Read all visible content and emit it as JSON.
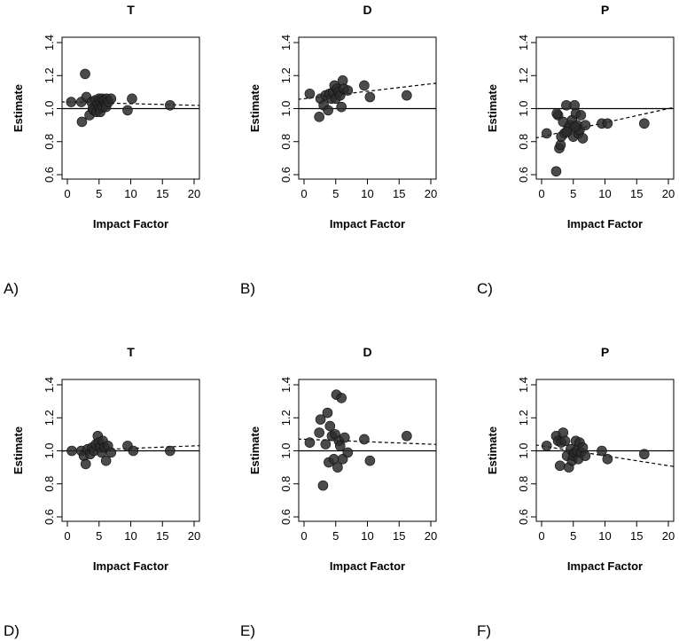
{
  "colors": {
    "point": "#2b2b2b",
    "line": "#000000"
  },
  "chart_data": [
    {
      "panel": "A)",
      "type": "scatter",
      "title": "T",
      "xlabel": "Impact Factor",
      "ylabel": "Estimate",
      "xlim": [
        0,
        20
      ],
      "ylim": [
        0.6,
        1.4
      ],
      "xticks": [
        "0",
        "5",
        "10",
        "15",
        "20"
      ],
      "yticks": [
        "0.6",
        "0.8",
        "1.0",
        "1.2",
        "1.4"
      ],
      "reference_line": 1.0,
      "trend_line": [
        [
          0,
          1.04
        ],
        [
          20,
          1.02
        ]
      ],
      "x": [
        0.6,
        2.2,
        2.3,
        2.8,
        3.0,
        3.5,
        3.8,
        4.0,
        4.2,
        4.4,
        4.6,
        4.8,
        5.0,
        5.1,
        5.2,
        5.3,
        5.5,
        5.6,
        5.8,
        6.0,
        6.1,
        6.2,
        6.5,
        6.9,
        9.5,
        10.2,
        16.2
      ],
      "y": [
        1.04,
        1.04,
        0.92,
        1.21,
        1.07,
        0.96,
        1.04,
        1.0,
        0.99,
        1.05,
        0.98,
        1.03,
        1.06,
        1.0,
        0.98,
        1.04,
        1.06,
        1.01,
        1.05,
        1.03,
        1.01,
        1.06,
        1.04,
        1.06,
        0.99,
        1.06,
        1.02
      ]
    },
    {
      "panel": "B)",
      "type": "scatter",
      "title": "D",
      "xlabel": "Impact Factor",
      "ylabel": "Estimate",
      "xlim": [
        0,
        20
      ],
      "ylim": [
        0.6,
        1.4
      ],
      "xticks": [
        "0",
        "5",
        "10",
        "15",
        "20"
      ],
      "yticks": [
        "0.6",
        "0.8",
        "1.0",
        "1.2",
        "1.4"
      ],
      "reference_line": 1.0,
      "trend_line": [
        [
          0,
          1.06
        ],
        [
          20,
          1.15
        ]
      ],
      "x": [
        0.9,
        2.4,
        2.6,
        3.1,
        3.4,
        3.8,
        4.0,
        4.3,
        4.6,
        4.8,
        5.0,
        5.2,
        5.5,
        5.7,
        5.9,
        6.1,
        6.3,
        6.9,
        9.5,
        10.4,
        16.2
      ],
      "y": [
        1.09,
        0.95,
        1.06,
        1.02,
        1.08,
        0.99,
        1.09,
        1.06,
        1.1,
        1.14,
        1.06,
        1.12,
        1.1,
        1.08,
        1.01,
        1.17,
        1.12,
        1.11,
        1.14,
        1.07,
        1.08
      ]
    },
    {
      "panel": "C)",
      "type": "scatter",
      "title": "P",
      "xlabel": "Impact Factor",
      "ylabel": "Estimate",
      "xlim": [
        0,
        20
      ],
      "ylim": [
        0.6,
        1.4
      ],
      "xticks": [
        "0",
        "5",
        "10",
        "15",
        "20"
      ],
      "yticks": [
        "0.6",
        "0.8",
        "1.0",
        "1.2",
        "1.4"
      ],
      "reference_line": 1.0,
      "trend_line": [
        [
          0,
          0.83
        ],
        [
          20,
          1.0
        ]
      ],
      "x": [
        0.8,
        2.3,
        2.6,
        2.8,
        3.0,
        3.4,
        3.6,
        3.9,
        4.2,
        4.5,
        4.8,
        5.0,
        5.2,
        5.4,
        5.6,
        5.8,
        6.0,
        6.2,
        6.5,
        6.9,
        9.5,
        10.4,
        16.2,
        2.4,
        3.1,
        4.0,
        5.3
      ],
      "y": [
        0.85,
        0.62,
        0.96,
        0.76,
        0.78,
        0.92,
        0.85,
        1.02,
        0.88,
        0.9,
        0.93,
        0.83,
        1.02,
        0.97,
        0.9,
        0.85,
        0.87,
        0.96,
        0.82,
        0.9,
        0.91,
        0.91,
        0.91,
        0.97,
        0.83,
        0.86,
        0.89
      ]
    },
    {
      "panel": "D)",
      "type": "scatter",
      "title": "T",
      "xlabel": "Impact Factor",
      "ylabel": "Estimate",
      "xlim": [
        0,
        20
      ],
      "ylim": [
        0.6,
        1.4
      ],
      "xticks": [
        "0",
        "5",
        "10",
        "15",
        "20"
      ],
      "yticks": [
        "0.6",
        "0.8",
        "1.0",
        "1.2",
        "1.4"
      ],
      "reference_line": 1.0,
      "trend_line": [
        [
          0,
          1.0
        ],
        [
          20,
          1.03
        ]
      ],
      "x": [
        0.7,
        2.2,
        2.6,
        2.9,
        3.2,
        3.6,
        3.9,
        4.2,
        4.5,
        4.8,
        5.0,
        5.2,
        5.4,
        5.6,
        5.9,
        6.1,
        6.4,
        6.9,
        9.5,
        10.4,
        16.2
      ],
      "y": [
        1.0,
        1.0,
        0.97,
        0.92,
        1.01,
        0.98,
        1.02,
        1.0,
        1.04,
        1.09,
        1.05,
        1.02,
        0.99,
        1.06,
        1.02,
        0.94,
        1.03,
        0.99,
        1.03,
        1.0,
        1.0
      ]
    },
    {
      "panel": "E)",
      "type": "scatter",
      "title": "D",
      "xlabel": "Impact Factor",
      "ylabel": "Estimate",
      "xlim": [
        0,
        20
      ],
      "ylim": [
        0.6,
        1.4
      ],
      "xticks": [
        "0",
        "5",
        "10",
        "15",
        "20"
      ],
      "yticks": [
        "0.6",
        "0.8",
        "1.0",
        "1.2",
        "1.4"
      ],
      "reference_line": 1.0,
      "trend_line": [
        [
          0,
          1.07
        ],
        [
          20,
          1.04
        ]
      ],
      "x": [
        0.9,
        2.4,
        2.6,
        3.0,
        3.4,
        3.7,
        3.9,
        4.1,
        4.4,
        4.7,
        4.9,
        5.1,
        5.3,
        5.5,
        5.7,
        5.9,
        6.1,
        6.4,
        6.9,
        9.5,
        10.4,
        16.2
      ],
      "y": [
        1.05,
        1.11,
        1.19,
        0.79,
        1.04,
        1.23,
        0.93,
        1.15,
        1.09,
        0.95,
        1.1,
        1.34,
        0.9,
        1.06,
        1.03,
        1.32,
        0.95,
        1.08,
        0.99,
        1.07,
        0.94,
        1.09
      ]
    },
    {
      "panel": "F)",
      "type": "scatter",
      "title": "P",
      "xlabel": "Impact Factor",
      "ylabel": "Estimate",
      "xlim": [
        0,
        20
      ],
      "ylim": [
        0.6,
        1.4
      ],
      "xticks": [
        "0",
        "5",
        "10",
        "15",
        "20"
      ],
      "yticks": [
        "0.6",
        "0.8",
        "1.0",
        "1.2",
        "1.4"
      ],
      "reference_line": 1.0,
      "trend_line": [
        [
          0,
          1.03
        ],
        [
          20,
          0.91
        ]
      ],
      "x": [
        0.8,
        2.3,
        2.6,
        2.9,
        3.1,
        3.4,
        3.7,
        4.0,
        4.3,
        4.6,
        4.8,
        5.0,
        5.2,
        5.4,
        5.6,
        5.8,
        6.0,
        6.2,
        6.5,
        6.9,
        9.5,
        10.4,
        16.2
      ],
      "y": [
        1.03,
        1.09,
        1.06,
        0.91,
        1.05,
        1.11,
        1.06,
        0.97,
        0.9,
        1.01,
        0.94,
        0.97,
        0.99,
        1.06,
        1.0,
        0.95,
        1.05,
        0.99,
        1.02,
        0.97,
        1.0,
        0.95,
        0.98
      ]
    }
  ]
}
